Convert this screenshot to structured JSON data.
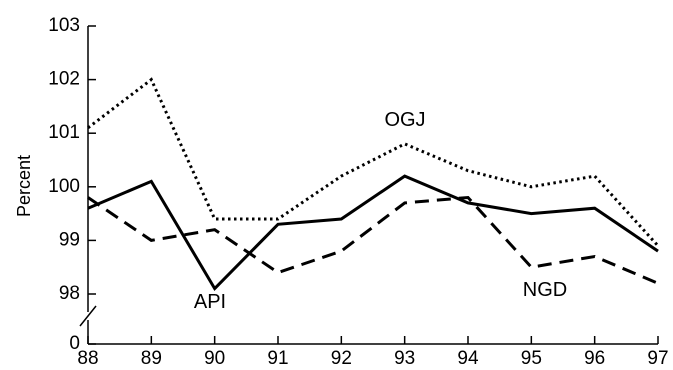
{
  "chart_data": {
    "type": "line",
    "title": "",
    "xlabel": "",
    "ylabel": "Percent",
    "x": [
      "88",
      "89",
      "90",
      "91",
      "92",
      "93",
      "94",
      "95",
      "96",
      "97"
    ],
    "yticks": [
      "98",
      "99",
      "100",
      "101",
      "102",
      "103"
    ],
    "ylim": [
      97.6,
      103
    ],
    "axis_break": {
      "low_label": "0"
    },
    "grid": false,
    "legend": "none; series labeled directly on the plot",
    "series": [
      {
        "name": "OGJ",
        "style": "dotted",
        "color": "#000000",
        "values": [
          101.1,
          102.0,
          99.4,
          99.4,
          100.2,
          100.8,
          100.3,
          100.0,
          100.2,
          98.9
        ]
      },
      {
        "name": "API",
        "style": "solid",
        "color": "#000000",
        "values": [
          99.6,
          100.1,
          98.1,
          99.3,
          99.4,
          100.2,
          99.7,
          99.5,
          99.6,
          98.8
        ]
      },
      {
        "name": "NGD",
        "style": "dashed",
        "color": "#000000",
        "values": [
          99.8,
          99.0,
          99.2,
          98.4,
          98.8,
          99.7,
          99.8,
          98.5,
          98.7,
          98.2
        ]
      }
    ]
  }
}
